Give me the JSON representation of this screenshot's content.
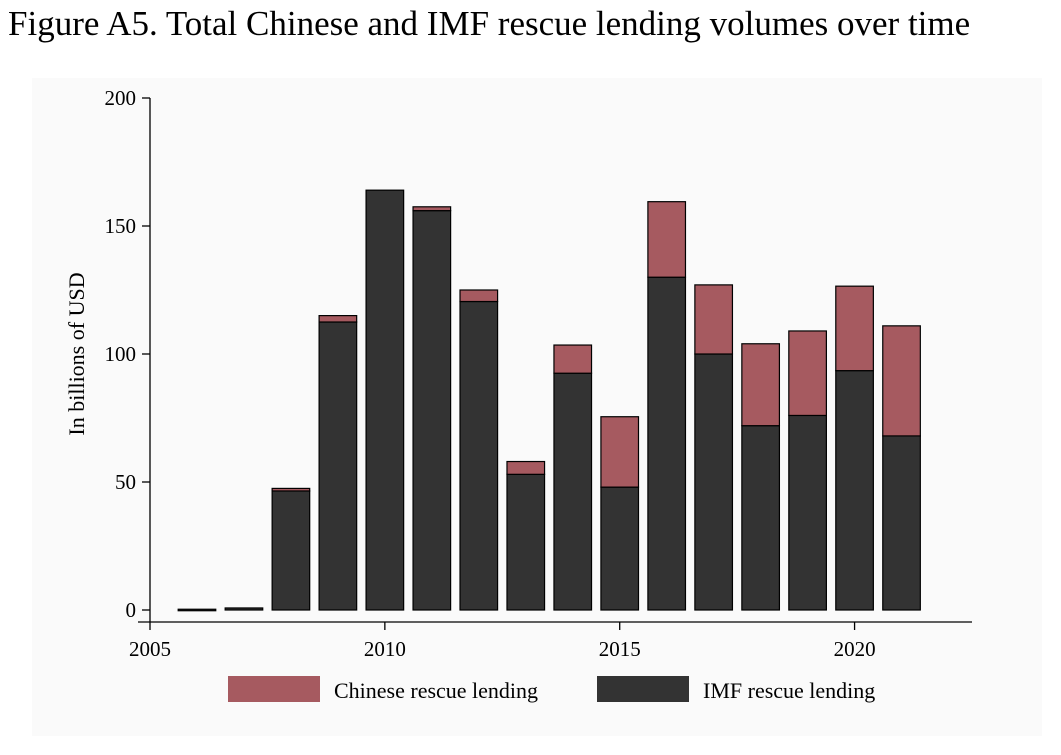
{
  "title": "Figure A5. Total Chinese and IMF rescue lending volumes over time",
  "colors": {
    "chinese": "#a65a60",
    "imf": "#333333",
    "outline": "#000000",
    "background": "#fafafa"
  },
  "chart_data": {
    "type": "bar",
    "stacked": true,
    "title": "",
    "xlabel": "",
    "ylabel": "In billions of USD",
    "xlim": [
      2005,
      2022.5
    ],
    "ylim": [
      0,
      200
    ],
    "x_ticks": [
      2005,
      2010,
      2015,
      2020
    ],
    "y_ticks": [
      0,
      50,
      100,
      150,
      200
    ],
    "grid": false,
    "legend_position": "bottom",
    "x": [
      2006,
      2007,
      2008,
      2009,
      2010,
      2011,
      2012,
      2013,
      2014,
      2015,
      2016,
      2017,
      2018,
      2019,
      2020,
      2021
    ],
    "series": [
      {
        "name": "IMF rescue lending",
        "color_key": "imf",
        "values": [
          0.3,
          0.8,
          46.5,
          112.5,
          164,
          156,
          120.5,
          53,
          92.5,
          48,
          130,
          100,
          72,
          76,
          93.5,
          68
        ]
      },
      {
        "name": "Chinese rescue lending",
        "color_key": "chinese",
        "values": [
          0,
          0,
          1,
          2.5,
          0,
          1.5,
          4.5,
          5,
          11,
          27.5,
          29.5,
          27,
          32,
          33,
          33,
          43
        ]
      }
    ],
    "legend": [
      {
        "label": "Chinese rescue lending",
        "color_key": "chinese"
      },
      {
        "label": "IMF rescue lending",
        "color_key": "imf"
      }
    ]
  }
}
